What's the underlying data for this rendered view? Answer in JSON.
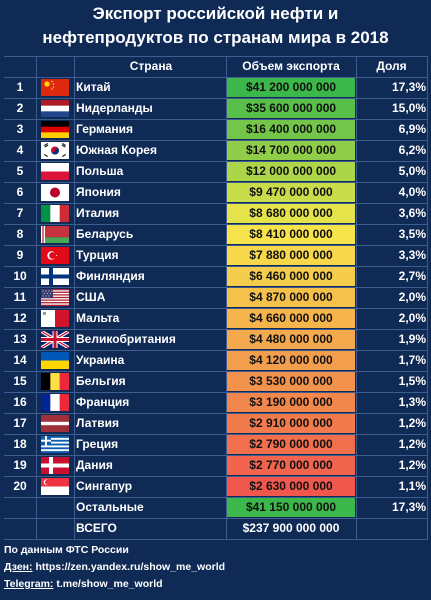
{
  "title_line1": "Экспорт российской нефти и",
  "title_line2": "нефтепродуктов по странам мира в 2018",
  "headers": {
    "country": "Страна",
    "volume": "Объем экспорта",
    "share": "Доля"
  },
  "colors": {
    "background": "#0f2a55",
    "value_high": "#3cb84a",
    "value_mid": "#f7e84a",
    "value_low": "#f0584e"
  },
  "chart_data": {
    "type": "table",
    "columns": [
      "Страна",
      "Объем экспорта",
      "Доля"
    ],
    "rows": [
      {
        "rank": "1",
        "country": "Китай",
        "flag": "china-flag-icon",
        "value": "$41 200 000 000",
        "amount": 41200000000,
        "share": "17,3%"
      },
      {
        "rank": "2",
        "country": "Нидерланды",
        "flag": "netherlands-flag-icon",
        "value": "$35 600 000 000",
        "amount": 35600000000,
        "share": "15,0%"
      },
      {
        "rank": "3",
        "country": "Германия",
        "flag": "germany-flag-icon",
        "value": "$16 400 000 000",
        "amount": 16400000000,
        "share": "6,9%"
      },
      {
        "rank": "4",
        "country": "Южная Корея",
        "flag": "south-korea-flag-icon",
        "value": "$14 700 000 000",
        "amount": 14700000000,
        "share": "6,2%"
      },
      {
        "rank": "5",
        "country": "Польша",
        "flag": "poland-flag-icon",
        "value": "$12 000 000 000",
        "amount": 12000000000,
        "share": "5,0%"
      },
      {
        "rank": "6",
        "country": "Япония",
        "flag": "japan-flag-icon",
        "value": "$9 470 000 000",
        "amount": 9470000000,
        "share": "4,0%"
      },
      {
        "rank": "7",
        "country": "Италия",
        "flag": "italy-flag-icon",
        "value": "$8 680 000 000",
        "amount": 8680000000,
        "share": "3,6%"
      },
      {
        "rank": "8",
        "country": "Беларусь",
        "flag": "belarus-flag-icon",
        "value": "$8 410 000 000",
        "amount": 8410000000,
        "share": "3,5%"
      },
      {
        "rank": "9",
        "country": "Турция",
        "flag": "turkey-flag-icon",
        "value": "$7 880 000 000",
        "amount": 7880000000,
        "share": "3,3%"
      },
      {
        "rank": "10",
        "country": "Финляндия",
        "flag": "finland-flag-icon",
        "value": "$6 460 000 000",
        "amount": 6460000000,
        "share": "2,7%"
      },
      {
        "rank": "11",
        "country": "США",
        "flag": "usa-flag-icon",
        "value": "$4 870 000 000",
        "amount": 4870000000,
        "share": "2,0%"
      },
      {
        "rank": "12",
        "country": "Мальта",
        "flag": "malta-flag-icon",
        "value": "$4 660 000 000",
        "amount": 4660000000,
        "share": "2,0%"
      },
      {
        "rank": "13",
        "country": "Великобритания",
        "flag": "uk-flag-icon",
        "value": "$4 480 000 000",
        "amount": 4480000000,
        "share": "1,9%"
      },
      {
        "rank": "14",
        "country": "Украина",
        "flag": "ukraine-flag-icon",
        "value": "$4 120 000 000",
        "amount": 4120000000,
        "share": "1,7%"
      },
      {
        "rank": "15",
        "country": "Бельгия",
        "flag": "belgium-flag-icon",
        "value": "$3 530 000 000",
        "amount": 3530000000,
        "share": "1,5%"
      },
      {
        "rank": "16",
        "country": "Франция",
        "flag": "france-flag-icon",
        "value": "$3 190 000 000",
        "amount": 3190000000,
        "share": "1,3%"
      },
      {
        "rank": "17",
        "country": "Латвия",
        "flag": "latvia-flag-icon",
        "value": "$2 910 000 000",
        "amount": 2910000000,
        "share": "1,2%"
      },
      {
        "rank": "18",
        "country": "Греция",
        "flag": "greece-flag-icon",
        "value": "$2 790 000 000",
        "amount": 2790000000,
        "share": "1,2%"
      },
      {
        "rank": "19",
        "country": "Дания",
        "flag": "denmark-flag-icon",
        "value": "$2 770 000 000",
        "amount": 2770000000,
        "share": "1,2%"
      },
      {
        "rank": "20",
        "country": "Сингапур",
        "flag": "singapore-flag-icon",
        "value": "$2 630 000 000",
        "amount": 2630000000,
        "share": "1,1%"
      }
    ],
    "others": {
      "country": "Остальные",
      "value": "$41 150 000 000",
      "amount": 41150000000,
      "share": "17,3%"
    },
    "total": {
      "country": "ВСЕГО",
      "value": "$237 900 000 000",
      "amount": 237900000000
    }
  },
  "footer": {
    "source": "По данным ФТС России",
    "dzen_label": "Дзен:",
    "dzen_url": "https://zen.yandex.ru/show_me_world",
    "telegram_label": "Telegram:",
    "telegram_url": "t.me/show_me_world"
  }
}
